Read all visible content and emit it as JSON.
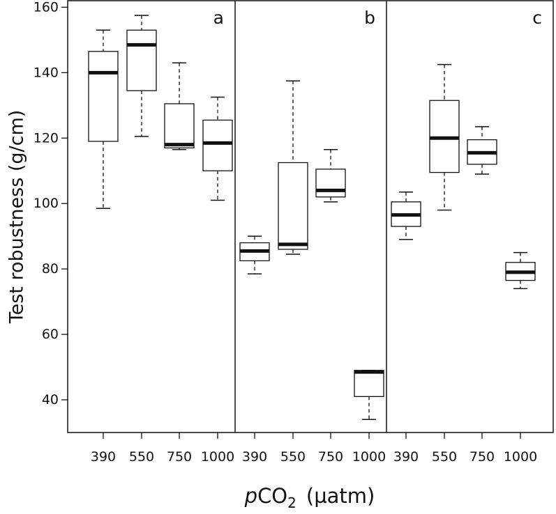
{
  "chart_data": {
    "type": "box",
    "ylabel": "Test robustness (g/cm)",
    "xlabel": {
      "italic": "p",
      "main": "CO",
      "subscript": "2",
      "unit": "(µatm)"
    },
    "ylim": [
      30,
      162
    ],
    "yticks": [
      40,
      60,
      80,
      100,
      120,
      140,
      160
    ],
    "categories": [
      "390",
      "550",
      "750",
      "1000"
    ],
    "panels": [
      {
        "letter": "a",
        "boxes": [
          {
            "x": "390",
            "whisker_low": 98.5,
            "q1": 119.0,
            "median": 140.0,
            "q3": 146.5,
            "whisker_high": 153.0
          },
          {
            "x": "550",
            "whisker_low": 120.5,
            "q1": 134.5,
            "median": 148.5,
            "q3": 153.0,
            "whisker_high": 157.5
          },
          {
            "x": "750",
            "whisker_low": 116.5,
            "q1": 117.0,
            "median": 118.0,
            "q3": 130.5,
            "whisker_high": 143.0
          },
          {
            "x": "1000",
            "whisker_low": 101.0,
            "q1": 110.0,
            "median": 118.5,
            "q3": 125.5,
            "whisker_high": 132.5
          }
        ]
      },
      {
        "letter": "b",
        "boxes": [
          {
            "x": "390",
            "whisker_low": 78.5,
            "q1": 82.5,
            "median": 85.5,
            "q3": 88.0,
            "whisker_high": 90.0
          },
          {
            "x": "550",
            "whisker_low": 84.5,
            "q1": 86.0,
            "median": 87.5,
            "q3": 112.5,
            "whisker_high": 137.5
          },
          {
            "x": "750",
            "whisker_low": 100.5,
            "q1": 102.0,
            "median": 104.0,
            "q3": 110.5,
            "whisker_high": 116.5
          },
          {
            "x": "1000",
            "whisker_low": 34.0,
            "q1": 41.0,
            "median": 48.5,
            "q3": 49.0,
            "whisker_high": 49.0
          }
        ]
      },
      {
        "letter": "c",
        "boxes": [
          {
            "x": "390",
            "whisker_low": 89.0,
            "q1": 93.0,
            "median": 96.5,
            "q3": 100.5,
            "whisker_high": 103.5
          },
          {
            "x": "550",
            "whisker_low": 98.0,
            "q1": 109.5,
            "median": 120.0,
            "q3": 131.5,
            "whisker_high": 142.5
          },
          {
            "x": "750",
            "whisker_low": 109.0,
            "q1": 112.0,
            "median": 115.5,
            "q3": 119.5,
            "whisker_high": 123.5
          },
          {
            "x": "1000",
            "whisker_low": 74.0,
            "q1": 76.5,
            "median": 79.0,
            "q3": 82.0,
            "whisker_high": 85.0
          }
        ]
      }
    ],
    "grid": false,
    "colors": {
      "box_fill": "#ffffff",
      "line": "#111111"
    }
  }
}
